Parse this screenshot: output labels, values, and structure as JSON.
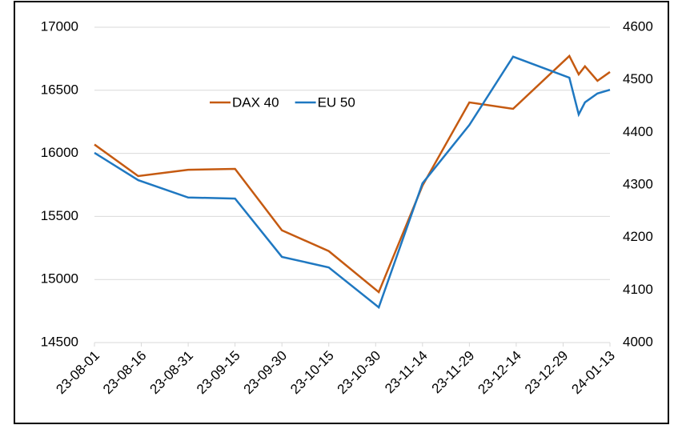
{
  "chart_data": {
    "type": "line",
    "x": [
      "23-08-01",
      "23-08-15",
      "23-08-31",
      "23-09-15",
      "23-09-30",
      "23-10-15",
      "23-10-31",
      "23-11-14",
      "23-11-29",
      "23-12-13",
      "23-12-31",
      "24-01-03",
      "24-01-05",
      "24-01-09",
      "24-01-13"
    ],
    "series": [
      {
        "name": "DAX 40",
        "color": "#c55a11",
        "values": [
          16070,
          15820,
          15870,
          15877,
          15390,
          15225,
          14900,
          15744,
          16404,
          16353,
          16772,
          16626,
          16690,
          16575,
          16645
        ]
      },
      {
        "name": "EU 50",
        "color": "#1f78c1",
        "axis": "y2",
        "values": [
          4361,
          4309,
          4276,
          4274,
          4163,
          4143,
          4067,
          4303,
          4414,
          4544,
          4504,
          4434,
          4457,
          4474,
          4481
        ]
      }
    ],
    "xlim": [
      "23-08-01",
      "24-01-13"
    ],
    "xticks": [
      "23-08-01",
      "23-08-16",
      "23-08-31",
      "23-09-15",
      "23-09-30",
      "23-10-15",
      "23-10-30",
      "23-11-14",
      "23-11-29",
      "23-12-14",
      "23-12-29",
      "24-01-13"
    ],
    "ylim": [
      14500,
      17000
    ],
    "yticks": [
      14500,
      15000,
      15500,
      16000,
      16500,
      17000
    ],
    "y2lim": [
      4000,
      4600
    ],
    "y2ticks": [
      4000,
      4100,
      4200,
      4300,
      4400,
      4500,
      4600
    ],
    "grid": true,
    "legend": "top-left"
  }
}
